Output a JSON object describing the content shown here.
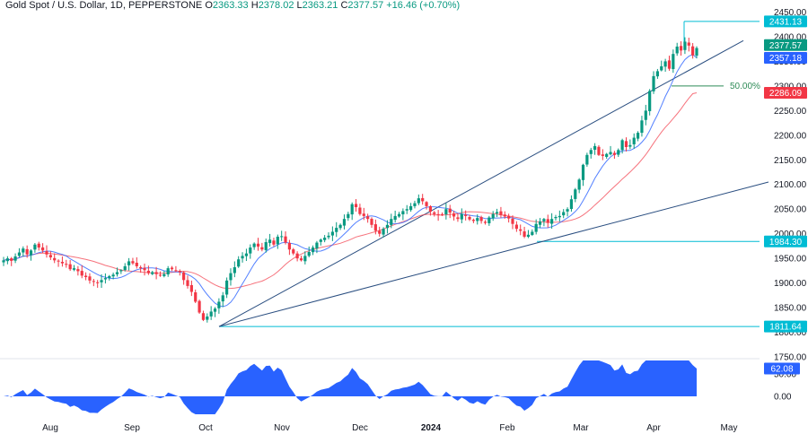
{
  "header": {
    "symbol": "Gold Spot / U.S. Dollar, 1D, PEPPERSTONE",
    "o_label": "O",
    "o": "2363.33",
    "h_label": "H",
    "h": "2378.02",
    "l_label": "L",
    "l": "2363.21",
    "c_label": "C",
    "c": "2377.57",
    "change": "+16.46 (+0.70%)"
  },
  "colors": {
    "up": "#089981",
    "down": "#f23645",
    "ma_fast": "#2962ff",
    "ma_slow": "#f23645",
    "trendline": "#2a4e80",
    "hline": "#00bcd4",
    "fib": "#2e8b57",
    "oscillator": "#2962ff",
    "tag_cyan": "#00bcd4",
    "tag_green": "#089981",
    "tag_blue": "#2962ff",
    "tag_red": "#f23645"
  },
  "price_axis": {
    "ticks": [
      "2450.00",
      "2400.00",
      "2350.00",
      "2300.00",
      "2250.00",
      "2200.00",
      "2150.00",
      "2100.00",
      "2050.00",
      "2000.00",
      "1950.00",
      "1900.00",
      "1850.00",
      "1800.00",
      "1750.00"
    ],
    "tags": [
      {
        "label": "2431.13",
        "color": "tag_cyan"
      },
      {
        "label": "2377.57",
        "color": "tag_green"
      },
      {
        "label": "2357.18",
        "color": "tag_blue"
      },
      {
        "label": "2286.09",
        "color": "tag_red"
      },
      {
        "label": "1984.30",
        "color": "tag_cyan"
      },
      {
        "label": "1811.64",
        "color": "tag_cyan"
      }
    ],
    "fib_label": "50.00%"
  },
  "osc_axis": {
    "ticks": [
      "50.00",
      "0.00"
    ],
    "tag": "62.08"
  },
  "time_axis": {
    "labels": [
      "Aug",
      "Sep",
      "Oct",
      "Nov",
      "Dec",
      "2024",
      "Feb",
      "Mar",
      "Apr",
      "May"
    ],
    "bold": "2024"
  },
  "chart_data": {
    "type": "candlestick",
    "title": "Gold Spot / U.S. Dollar, 1D, PEPPERSTONE",
    "ylim": [
      1750,
      2460
    ],
    "grid": false,
    "closes": [
      1946,
      1950,
      1945,
      1954,
      1962,
      1970,
      1958,
      1966,
      1978,
      1972,
      1966,
      1958,
      1952,
      1946,
      1944,
      1940,
      1937,
      1928,
      1930,
      1924,
      1915,
      1912,
      1905,
      1903,
      1900,
      1906,
      1910,
      1914,
      1917,
      1922,
      1926,
      1934,
      1944,
      1940,
      1934,
      1930,
      1926,
      1920,
      1922,
      1918,
      1915,
      1918,
      1930,
      1928,
      1925,
      1922,
      1906,
      1894,
      1882,
      1862,
      1840,
      1825,
      1832,
      1842,
      1848,
      1862,
      1875,
      1905,
      1920,
      1932,
      1948,
      1955,
      1960,
      1972,
      1980,
      1974,
      1968,
      1983,
      1988,
      1978,
      1994,
      1995,
      1982,
      1968,
      1960,
      1950,
      1946,
      1955,
      1963,
      1972,
      1982,
      1988,
      1992,
      1996,
      2004,
      2012,
      2018,
      2030,
      2040,
      2060,
      2054,
      2040,
      2036,
      2030,
      2018,
      2006,
      2000,
      2010,
      2018,
      2030,
      2036,
      2040,
      2046,
      2050,
      2056,
      2062,
      2072,
      2066,
      2056,
      2045,
      2040,
      2038,
      2038,
      2050,
      2043,
      2035,
      2030,
      2040,
      2036,
      2029,
      2026,
      2032,
      2026,
      2022,
      2033,
      2040,
      2044,
      2038,
      2035,
      2031,
      2020,
      2010,
      2006,
      1994,
      1998,
      2004,
      2020,
      2025,
      2030,
      2022,
      2030,
      2034,
      2036,
      2044,
      2050,
      2070,
      2090,
      2110,
      2140,
      2160,
      2170,
      2178,
      2160,
      2158,
      2162,
      2166,
      2160,
      2170,
      2190,
      2176,
      2180,
      2195,
      2205,
      2230,
      2250,
      2290,
      2320,
      2330,
      2340,
      2350,
      2335,
      2365,
      2380,
      2372,
      2390,
      2382,
      2362,
      2377
    ],
    "ma_fast_last": 2357.18,
    "ma_slow_last": 2286.09,
    "levels": [
      {
        "name": "resistance",
        "value": 2431.13
      },
      {
        "name": "support-feb",
        "value": 1984.3
      },
      {
        "name": "support-oct",
        "value": 1811.64
      }
    ],
    "fib": {
      "label": "50.00%",
      "value": 2300
    },
    "trendlines": [
      {
        "from": {
          "x": "Oct 6",
          "y": 1811.64
        },
        "to": {
          "x": "Apr 26",
          "y": 2390
        }
      },
      {
        "from": {
          "x": "Oct 6",
          "y": 1811.64
        },
        "to": {
          "x": "May 10",
          "y": 2105
        }
      }
    ],
    "oscillator": {
      "ylim": [
        -40,
        80
      ],
      "last": 62.08,
      "ticks": [
        50,
        0
      ]
    }
  }
}
